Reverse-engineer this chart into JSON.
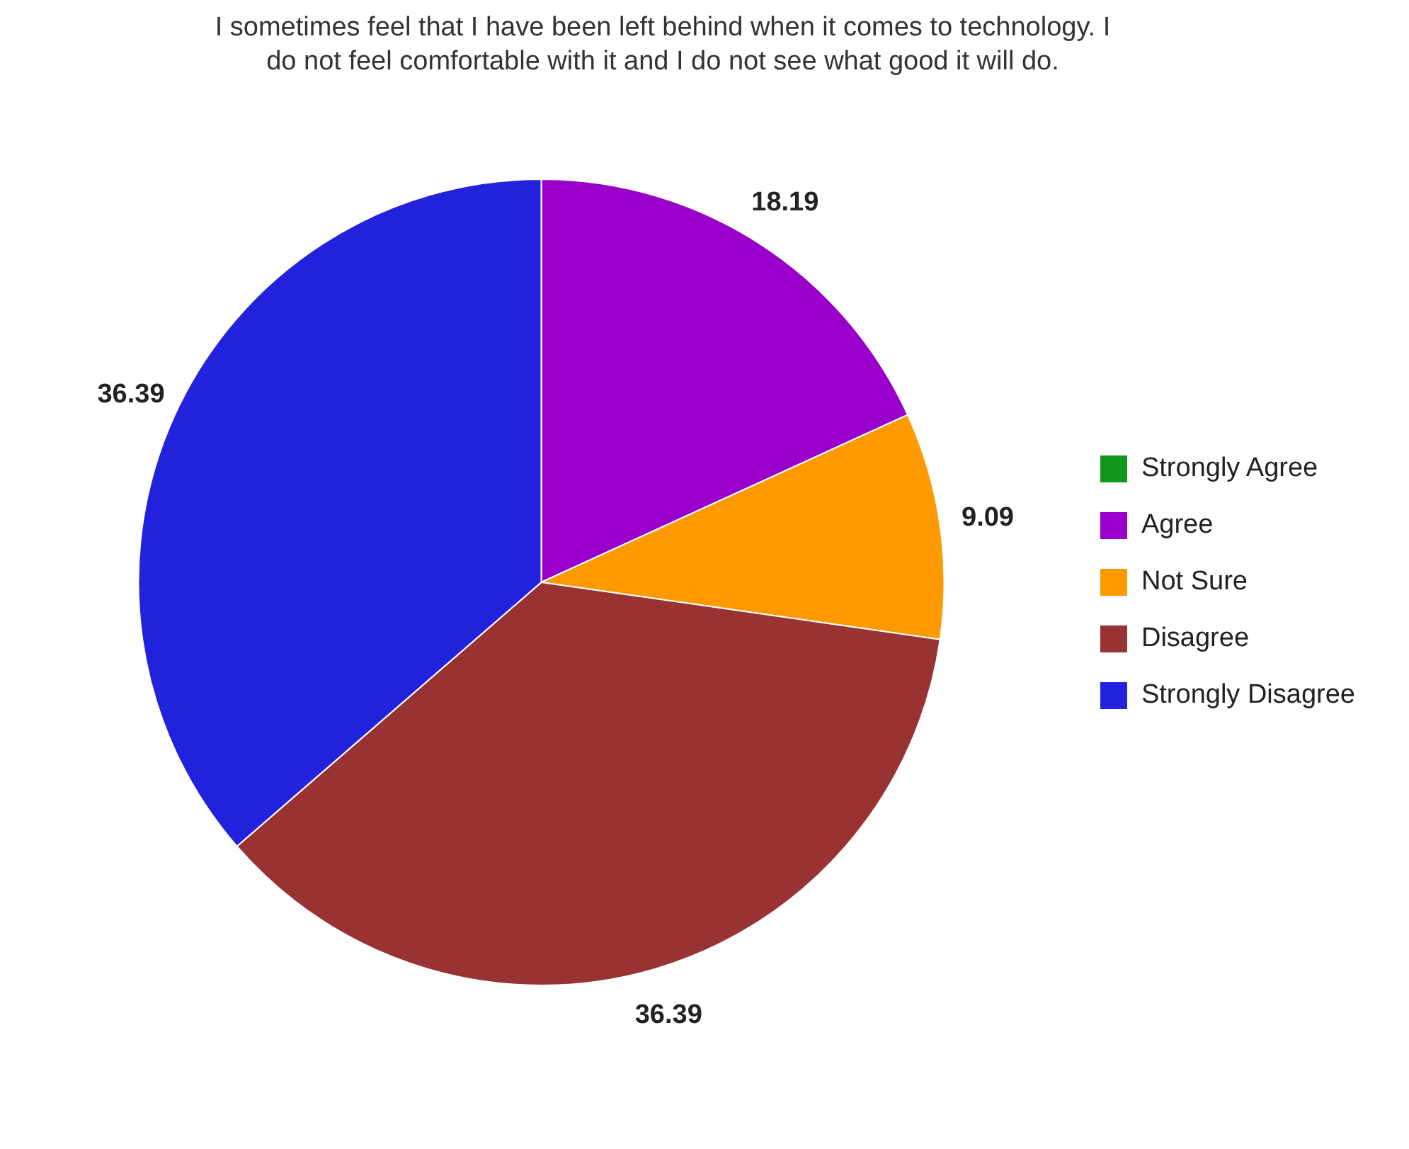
{
  "chart_data": {
    "type": "pie",
    "title": "I sometimes feel that I have been left behind when it comes to technology.  I do not feel comfortable with it and I do not see what good it will do.",
    "categories": [
      "Strongly Agree",
      "Agree",
      "Not Sure",
      "Disagree",
      "Strongly Disagree"
    ],
    "values": [
      0,
      18.19,
      9.09,
      36.39,
      36.39
    ],
    "colors": [
      "#109618",
      "#9900cc",
      "#ff9900",
      "#993333",
      "#2222dd"
    ],
    "value_labels": [
      null,
      "18.19",
      "9.09",
      "36.39",
      "36.39"
    ],
    "legend": "right"
  }
}
